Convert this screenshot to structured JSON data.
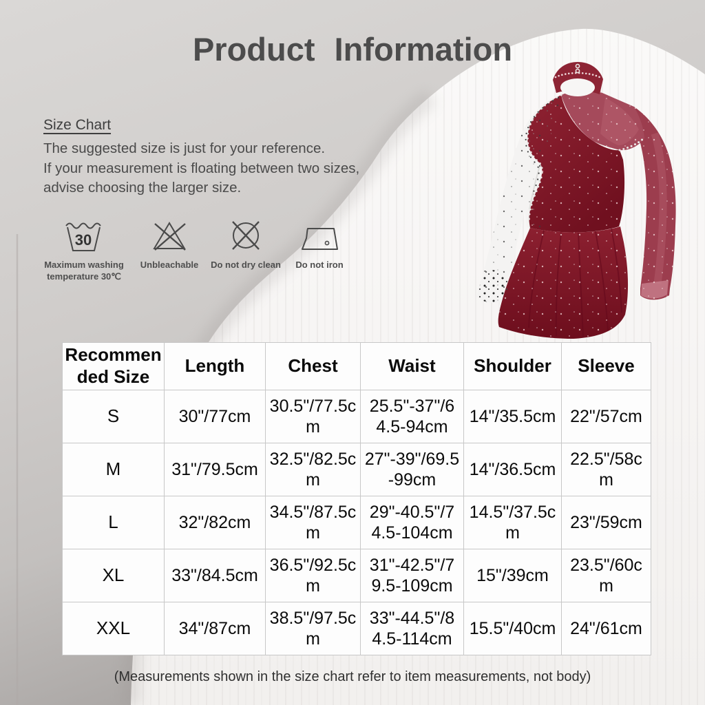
{
  "title": "Product Information",
  "size_chart": {
    "heading": "Size Chart",
    "body": "The suggested size is just for your reference.\nIf your measurement is floating between two sizes,\nadvise choosing the larger size."
  },
  "care": {
    "items": [
      {
        "icon": "washing-temperature-icon",
        "icon_text": "30",
        "label": "Maximum washing\ntemperature 30℃"
      },
      {
        "icon": "unbleachable-icon",
        "label": "Unbleachable"
      },
      {
        "icon": "do-not-dry-clean-icon",
        "label": "Do not dry clean"
      },
      {
        "icon": "do-not-iron-icon",
        "label": "Do not iron"
      }
    ]
  },
  "product_image": {
    "name": "figure-skating-dress-photo",
    "colors": {
      "bodice_burgundy": "#871c2b",
      "mesh_burgundy": "#9c3d4e",
      "white_mesh": "#f4f3f2"
    }
  },
  "table": {
    "headers": [
      "Recommended Size",
      "Length",
      "Chest",
      "Waist",
      "Shoulder",
      "Sleeve"
    ],
    "rows": [
      [
        "S",
        "30\"/77cm",
        "30.5\"/77.5cm",
        "25.5\"-37\"/64.5-94cm",
        "14\"/35.5cm",
        "22\"/57cm"
      ],
      [
        "M",
        "31\"/79.5cm",
        "32.5\"/82.5cm",
        "27\"-39\"/69.5-99cm",
        "14\"/36.5cm",
        "22.5\"/58cm"
      ],
      [
        "L",
        "32\"/82cm",
        "34.5\"/87.5cm",
        "29\"-40.5\"/74.5-104cm",
        "14.5\"/37.5cm",
        "23\"/59cm"
      ],
      [
        "XL",
        "33\"/84.5cm",
        "36.5\"/92.5cm",
        "31\"-42.5\"/79.5-109cm",
        "15\"/39cm",
        "23.5\"/60cm"
      ],
      [
        "XXL",
        "34\"/87cm",
        "38.5\"/97.5cm",
        "33\"-44.5\"/84.5-114cm",
        "15.5\"/40cm",
        "24\"/61cm"
      ]
    ]
  },
  "footer_note": "(Measurements shown in the size chart refer to item measurements, not body)",
  "colors": {
    "wall_gray": "#cfccca",
    "wall_gray_dark": "#a6a2a0",
    "curtain_white": "#f7f6f4",
    "text_dark": "#4a4a4a"
  }
}
